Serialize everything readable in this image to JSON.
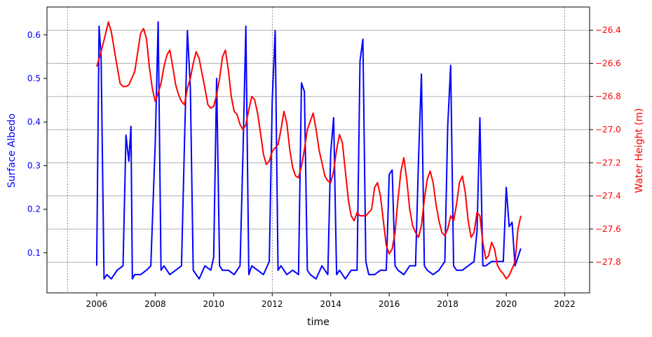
{
  "chart_data": {
    "type": "line",
    "xlabel": "time",
    "ylabel_left": "Surface Albedo",
    "ylabel_right": "Water Height (m)",
    "left_color": "#0000ff",
    "right_color": "#ff0000",
    "xlim": [
      2004.3,
      2022.85
    ],
    "ylim_left": [
      0.008,
      0.664
    ],
    "ylim_right": [
      -27.985,
      -26.26
    ],
    "x_ticks": [
      2006,
      2008,
      2010,
      2012,
      2014,
      2016,
      2018,
      2020,
      2022
    ],
    "x_tick_labels": [
      "2006",
      "2008",
      "2010",
      "2012",
      "2014",
      "2016",
      "2018",
      "2020",
      "2022"
    ],
    "y_left_ticks": [
      0.1,
      0.2,
      0.3,
      0.4,
      0.5,
      0.6
    ],
    "y_left_tick_labels": [
      "0.1",
      "0.2",
      "0.3",
      "0.4",
      "0.5",
      "0.6"
    ],
    "y_right_ticks": [
      -27.8,
      -27.6,
      -27.4,
      -27.2,
      -27.0,
      -26.8,
      -26.6,
      -26.4
    ],
    "y_right_tick_labels": [
      "−27.8",
      "−27.6",
      "−27.4",
      "−27.2",
      "−27.0",
      "−26.8",
      "−26.6",
      "−26.4"
    ],
    "vertical_dashed_lines": [
      2005,
      2012,
      2022
    ],
    "grid": "horizontal lines at right-axis ticks",
    "series": [
      {
        "axis": "left",
        "x": [
          2006.0,
          2006.08,
          2006.15,
          2006.25,
          2006.35,
          2006.5,
          2006.7,
          2006.9,
          2007.0,
          2007.1,
          2007.17,
          2007.22,
          2007.3,
          2007.5,
          2007.7,
          2007.85,
          2008.0,
          2008.1,
          2008.2,
          2008.3,
          2008.5,
          2008.7,
          2008.9,
          2009.0,
          2009.1,
          2009.2,
          2009.3,
          2009.5,
          2009.7,
          2009.9,
          2010.0,
          2010.1,
          2010.2,
          2010.3,
          2010.5,
          2010.7,
          2010.9,
          2011.0,
          2011.1,
          2011.2,
          2011.3,
          2011.5,
          2011.7,
          2011.9,
          2012.0,
          2012.1,
          2012.2,
          2012.3,
          2012.5,
          2012.7,
          2012.9,
          2013.0,
          2013.1,
          2013.2,
          2013.3,
          2013.5,
          2013.7,
          2013.9,
          2014.0,
          2014.1,
          2014.2,
          2014.3,
          2014.5,
          2014.7,
          2014.9,
          2015.0,
          2015.1,
          2015.2,
          2015.3,
          2015.5,
          2015.7,
          2015.9,
          2016.0,
          2016.1,
          2016.2,
          2016.3,
          2016.5,
          2016.7,
          2016.9,
          2017.0,
          2017.1,
          2017.2,
          2017.3,
          2017.5,
          2017.7,
          2017.9,
          2018.0,
          2018.1,
          2018.2,
          2018.3,
          2018.5,
          2018.7,
          2018.9,
          2019.0,
          2019.1,
          2019.2,
          2019.3,
          2019.5,
          2019.7,
          2019.9,
          2020.0,
          2020.1,
          2020.2,
          2020.3,
          2020.4,
          2020.5
        ],
        "values": [
          0.07,
          0.62,
          0.55,
          0.04,
          0.05,
          0.04,
          0.06,
          0.07,
          0.37,
          0.31,
          0.39,
          0.04,
          0.05,
          0.05,
          0.06,
          0.07,
          0.35,
          0.63,
          0.06,
          0.07,
          0.05,
          0.06,
          0.07,
          0.35,
          0.61,
          0.48,
          0.06,
          0.04,
          0.07,
          0.06,
          0.09,
          0.5,
          0.07,
          0.06,
          0.06,
          0.05,
          0.07,
          0.33,
          0.62,
          0.05,
          0.07,
          0.06,
          0.05,
          0.08,
          0.45,
          0.61,
          0.06,
          0.07,
          0.05,
          0.06,
          0.05,
          0.49,
          0.47,
          0.06,
          0.05,
          0.04,
          0.07,
          0.05,
          0.33,
          0.41,
          0.05,
          0.06,
          0.04,
          0.06,
          0.06,
          0.54,
          0.59,
          0.08,
          0.05,
          0.05,
          0.06,
          0.06,
          0.28,
          0.29,
          0.07,
          0.06,
          0.05,
          0.07,
          0.07,
          0.31,
          0.51,
          0.07,
          0.06,
          0.05,
          0.06,
          0.08,
          0.39,
          0.53,
          0.07,
          0.06,
          0.06,
          0.07,
          0.08,
          0.15,
          0.41,
          0.07,
          0.07,
          0.08,
          0.08,
          0.08,
          0.25,
          0.16,
          0.17,
          0.07,
          0.09,
          0.11
        ]
      },
      {
        "axis": "right",
        "x": [
          2006.0,
          2006.1,
          2006.25,
          2006.4,
          2006.5,
          2006.7,
          2006.8,
          2006.9,
          2007.0,
          2007.1,
          2007.3,
          2007.5,
          2007.6,
          2007.7,
          2007.8,
          2007.9,
          2008.0,
          2008.1,
          2008.2,
          2008.3,
          2008.4,
          2008.5,
          2008.6,
          2008.7,
          2008.8,
          2008.9,
          2009.0,
          2009.1,
          2009.2,
          2009.3,
          2009.4,
          2009.5,
          2009.7,
          2009.8,
          2009.9,
          2010.0,
          2010.1,
          2010.2,
          2010.3,
          2010.4,
          2010.5,
          2010.6,
          2010.7,
          2010.8,
          2010.9,
          2011.0,
          2011.1,
          2011.2,
          2011.3,
          2011.4,
          2011.5,
          2011.6,
          2011.7,
          2011.8,
          2011.9,
          2012.0,
          2012.2,
          2012.3,
          2012.4,
          2012.5,
          2012.6,
          2012.7,
          2012.8,
          2012.9,
          2013.0,
          2013.1,
          2013.2,
          2013.3,
          2013.4,
          2013.5,
          2013.6,
          2013.7,
          2013.8,
          2013.9,
          2014.0,
          2014.1,
          2014.2,
          2014.3,
          2014.4,
          2014.5,
          2014.6,
          2014.7,
          2014.8,
          2014.9,
          2015.0,
          2015.2,
          2015.4,
          2015.5,
          2015.6,
          2015.7,
          2015.8,
          2015.9,
          2016.0,
          2016.1,
          2016.2,
          2016.3,
          2016.4,
          2016.5,
          2016.6,
          2016.7,
          2016.8,
          2016.9,
          2017.0,
          2017.1,
          2017.2,
          2017.3,
          2017.4,
          2017.5,
          2017.6,
          2017.7,
          2017.8,
          2017.9,
          2018.0,
          2018.1,
          2018.2,
          2018.3,
          2018.4,
          2018.5,
          2018.6,
          2018.7,
          2018.8,
          2018.9,
          2019.0,
          2019.1,
          2019.2,
          2019.3,
          2019.4,
          2019.5,
          2019.6,
          2019.7,
          2019.8,
          2019.9,
          2020.0,
          2020.1,
          2020.2,
          2020.3,
          2020.4,
          2020.5
        ],
        "values": [
          -26.62,
          -26.56,
          -26.46,
          -26.35,
          -26.41,
          -26.62,
          -26.72,
          -26.74,
          -26.74,
          -26.73,
          -26.65,
          -26.42,
          -26.39,
          -26.45,
          -26.62,
          -26.75,
          -26.83,
          -26.78,
          -26.72,
          -26.62,
          -26.55,
          -26.52,
          -26.62,
          -26.73,
          -26.79,
          -26.83,
          -26.85,
          -26.75,
          -26.69,
          -26.6,
          -26.53,
          -26.57,
          -26.75,
          -26.85,
          -26.87,
          -26.86,
          -26.79,
          -26.69,
          -26.56,
          -26.52,
          -26.64,
          -26.8,
          -26.89,
          -26.91,
          -26.97,
          -27.0,
          -26.97,
          -26.88,
          -26.8,
          -26.82,
          -26.9,
          -27.02,
          -27.15,
          -27.21,
          -27.19,
          -27.13,
          -27.09,
          -27.0,
          -26.89,
          -26.96,
          -27.12,
          -27.23,
          -27.28,
          -27.29,
          -27.22,
          -27.12,
          -27.0,
          -26.95,
          -26.9,
          -27.0,
          -27.12,
          -27.2,
          -27.28,
          -27.31,
          -27.32,
          -27.25,
          -27.12,
          -27.03,
          -27.08,
          -27.25,
          -27.42,
          -27.52,
          -27.55,
          -27.5,
          -27.52,
          -27.52,
          -27.48,
          -27.35,
          -27.32,
          -27.4,
          -27.55,
          -27.7,
          -27.75,
          -27.72,
          -27.62,
          -27.42,
          -27.25,
          -27.17,
          -27.3,
          -27.48,
          -27.58,
          -27.62,
          -27.65,
          -27.58,
          -27.42,
          -27.3,
          -27.25,
          -27.32,
          -27.45,
          -27.55,
          -27.62,
          -27.64,
          -27.6,
          -27.52,
          -27.55,
          -27.45,
          -27.32,
          -27.28,
          -27.38,
          -27.55,
          -27.65,
          -27.62,
          -27.5,
          -27.52,
          -27.68,
          -27.78,
          -27.76,
          -27.68,
          -27.72,
          -27.82,
          -27.85,
          -27.87,
          -27.9,
          -27.88,
          -27.84,
          -27.8,
          -27.6,
          -27.52
        ]
      }
    ]
  }
}
